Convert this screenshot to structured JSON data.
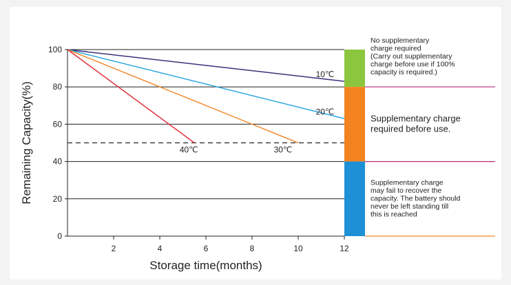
{
  "chart_data": {
    "type": "line",
    "title": "",
    "xlabel": "Storage time(months)",
    "ylabel": "Remaining Capacity(%)",
    "xlim": [
      0,
      12
    ],
    "ylim": [
      0,
      100
    ],
    "x_ticks": [
      "2",
      "4",
      "6",
      "8",
      "10",
      "12"
    ],
    "y_ticks": [
      "0",
      "20",
      "40",
      "60",
      "80",
      "100"
    ],
    "series": [
      {
        "name": "10℃",
        "color": "#3a2f7a",
        "x": [
          0,
          12
        ],
        "y": [
          100,
          83
        ]
      },
      {
        "name": "20℃",
        "color": "#2aa6e0",
        "x": [
          0,
          12
        ],
        "y": [
          100,
          63
        ]
      },
      {
        "name": "30℃",
        "color": "#f28a2e",
        "x": [
          0,
          10
        ],
        "y": [
          100,
          50
        ]
      },
      {
        "name": "40℃",
        "color": "#e0313e",
        "x": [
          0,
          5.5
        ],
        "y": [
          100,
          50
        ]
      }
    ],
    "reference_line": {
      "y": 50,
      "style": "dashed"
    },
    "grid": true,
    "zones": [
      {
        "y_from": 80,
        "y_to": 100,
        "color": "#8cc63f",
        "divider_color": "#b5287a",
        "note": [
          "No supplementary",
          "charge required",
          "(Carry out supplementary",
          "charge before use if 100%",
          "capacity is required.)"
        ]
      },
      {
        "y_from": 40,
        "y_to": 80,
        "color": "#f2831f",
        "divider_color": "#b5287a",
        "note": [
          "Supplementary charge",
          "required before use."
        ]
      },
      {
        "y_from": 0,
        "y_to": 40,
        "color": "#1e90d6",
        "divider_color": "#f2831f",
        "note": [
          "Supplementary charge",
          "may fail to recover the",
          "capacity. The battery should",
          "never be left standing till",
          "this is reached"
        ]
      }
    ]
  }
}
